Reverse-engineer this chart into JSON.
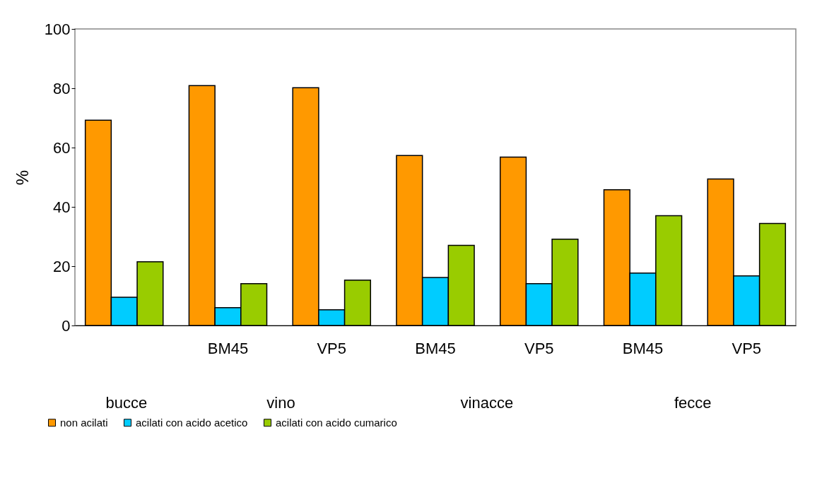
{
  "chart_data": {
    "type": "bar",
    "ylabel": "%",
    "categories": [
      null,
      "BM45",
      "VP5",
      "BM45",
      "VP5",
      "BM45",
      "VP5"
    ],
    "series": [
      {
        "name": "non acilati",
        "color": "#ff9900",
        "values": [
          69.2,
          80.9,
          80.2,
          57.3,
          56.8,
          45.8,
          49.4
        ]
      },
      {
        "name": "acilati con acido acetico",
        "color": "#00ccff",
        "values": [
          9.5,
          6.0,
          5.3,
          16.2,
          14.1,
          17.7,
          16.7
        ]
      },
      {
        "name": "acilati con acido cumarico",
        "color": "#99cc00",
        "values": [
          21.5,
          14.1,
          15.3,
          27.0,
          29.1,
          37.0,
          34.4
        ]
      }
    ],
    "annotations": [
      "bucce",
      "vino",
      "vinacce",
      "fecce"
    ],
    "ylim": [
      0,
      100
    ],
    "yticks": [
      0,
      20,
      40,
      60,
      80,
      100
    ],
    "grid": false,
    "legend": "bottom"
  }
}
